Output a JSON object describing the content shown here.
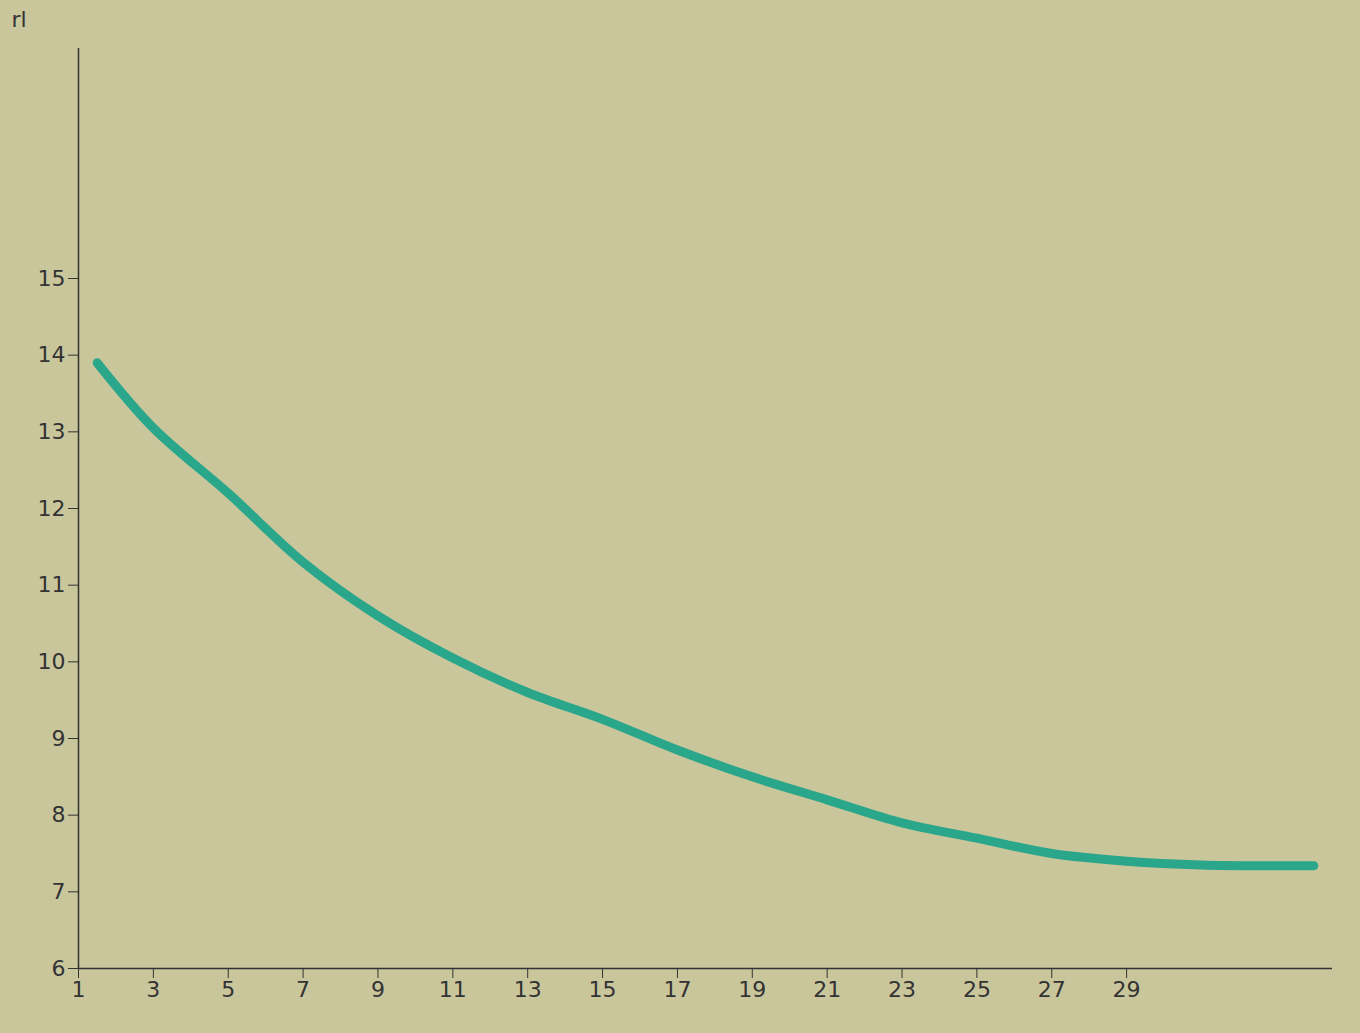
{
  "chart_data": {
    "type": "line",
    "y_label": "rl",
    "x": [
      1.5,
      3,
      5,
      7,
      9,
      11,
      13,
      15,
      17,
      19,
      21,
      23,
      25,
      27,
      29,
      31,
      33,
      34
    ],
    "values": [
      13.9,
      13.05,
      12.2,
      11.3,
      10.6,
      10.05,
      9.6,
      9.25,
      8.85,
      8.5,
      8.2,
      7.9,
      7.7,
      7.5,
      7.4,
      7.35,
      7.34,
      7.34
    ],
    "color": "#2aa68a",
    "xlim": [
      1,
      34.5
    ],
    "xticks": [
      1,
      3,
      5,
      7,
      9,
      11,
      13,
      15,
      17,
      19,
      21,
      23,
      25,
      27,
      29
    ],
    "ylim": [
      6,
      18
    ],
    "yticks": [
      6,
      7,
      8,
      9,
      10,
      11,
      12,
      13,
      14,
      15
    ],
    "grid": false
  }
}
